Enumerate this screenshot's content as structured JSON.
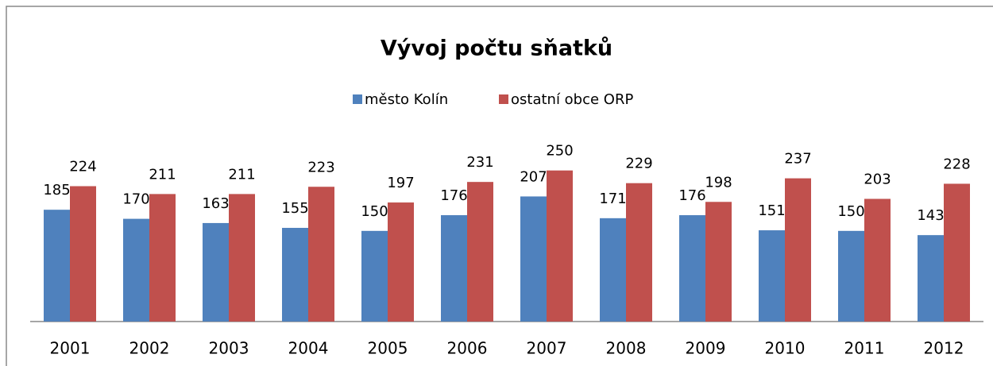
{
  "chart_data": {
    "type": "bar",
    "title": "Vývoj počtu sňatků",
    "categories": [
      "2001",
      "2002",
      "2003",
      "2004",
      "2005",
      "2006",
      "2007",
      "2008",
      "2009",
      "2010",
      "2011",
      "2012"
    ],
    "series": [
      {
        "name": "město Kolín",
        "color": "#4f81bd",
        "values": [
          185,
          170,
          163,
          155,
          150,
          176,
          207,
          171,
          176,
          151,
          150,
          143
        ]
      },
      {
        "name": "ostatní obce ORP",
        "color": "#c0504d",
        "values": [
          224,
          211,
          211,
          223,
          197,
          231,
          250,
          229,
          198,
          237,
          203,
          228
        ]
      }
    ],
    "ylim": [
      0,
      335
    ],
    "legend": "top"
  }
}
